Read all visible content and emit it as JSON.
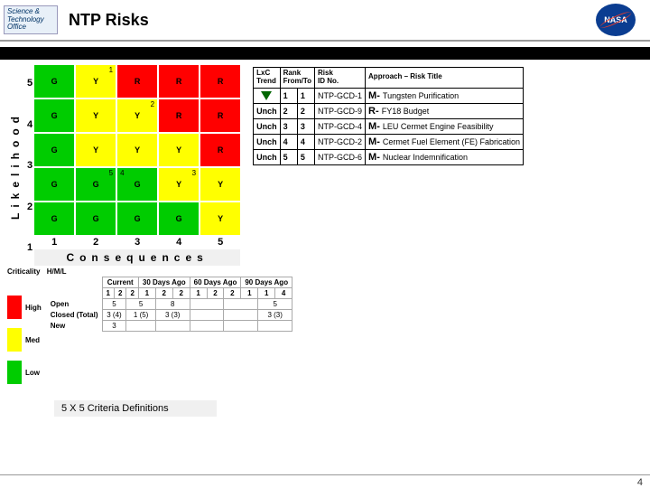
{
  "header": {
    "sci_line1": "Science &",
    "sci_line2": "Technology",
    "sci_line3": "Office",
    "title": "NTP Risks",
    "nasa": "NASA"
  },
  "matrix": {
    "ylabel": "Likelihood",
    "xlabel": "Consequences",
    "yticks": [
      "5",
      "4",
      "3",
      "2",
      "1"
    ],
    "xticks": [
      "1",
      "2",
      "3",
      "4",
      "5"
    ],
    "colors": {
      "g": "#00cc00",
      "y": "#ffff00",
      "r": "#ff0000"
    },
    "cells": [
      [
        {
          "c": "g",
          "t": "G"
        },
        {
          "c": "y",
          "t": "Y",
          "n": "1"
        },
        {
          "c": "r",
          "t": "R"
        },
        {
          "c": "r",
          "t": "R"
        },
        {
          "c": "r",
          "t": "R"
        }
      ],
      [
        {
          "c": "g",
          "t": "G"
        },
        {
          "c": "y",
          "t": "Y"
        },
        {
          "c": "y",
          "t": "Y",
          "n": "2"
        },
        {
          "c": "r",
          "t": "R"
        },
        {
          "c": "r",
          "t": "R"
        }
      ],
      [
        {
          "c": "g",
          "t": "G"
        },
        {
          "c": "y",
          "t": "Y"
        },
        {
          "c": "y",
          "t": "Y"
        },
        {
          "c": "y",
          "t": "Y"
        },
        {
          "c": "r",
          "t": "R"
        }
      ],
      [
        {
          "c": "g",
          "t": "G"
        },
        {
          "c": "g",
          "t": "G",
          "n": "5"
        },
        {
          "c": "g",
          "t": "G",
          "l": "4"
        },
        {
          "c": "y",
          "t": "Y",
          "n": "3"
        },
        {
          "c": "y",
          "t": "Y"
        }
      ],
      [
        {
          "c": "g",
          "t": "G"
        },
        {
          "c": "g",
          "t": "G"
        },
        {
          "c": "g",
          "t": "G"
        },
        {
          "c": "g",
          "t": "G"
        },
        {
          "c": "y",
          "t": "Y"
        }
      ]
    ]
  },
  "risk_table": {
    "headers": [
      "LxC\nTrend",
      "Rank\nFrom/To",
      "Risk\nID No.",
      "Approach – Risk Title"
    ],
    "rows": [
      {
        "trend": "down",
        "from": "1",
        "to": "1",
        "id": "NTP-GCD-1",
        "appr": "M-",
        "title": "Tungsten Purification"
      },
      {
        "trend": "Unch",
        "from": "2",
        "to": "2",
        "id": "NTP-GCD-9",
        "appr": "R-",
        "title": "FY18 Budget"
      },
      {
        "trend": "Unch",
        "from": "3",
        "to": "3",
        "id": "NTP-GCD-4",
        "appr": "M-",
        "title": "LEU Cermet Engine Feasibility"
      },
      {
        "trend": "Unch",
        "from": "4",
        "to": "4",
        "id": "NTP-GCD-2",
        "appr": "M-",
        "title": "Cermet Fuel Element (FE) Fabrication"
      },
      {
        "trend": "Unch",
        "from": "5",
        "to": "5",
        "id": "NTP-GCD-6",
        "appr": "M-",
        "title": "Nuclear Indemnification"
      }
    ]
  },
  "summary": {
    "crit_header": "Criticality",
    "hml": "H/M/L",
    "crit_rows": [
      {
        "color": "#ff0000",
        "label": "High"
      },
      {
        "color": "#ffff00",
        "label": "Med"
      },
      {
        "color": "#00cc00",
        "label": "Low"
      }
    ],
    "periods": [
      "Current",
      "30 Days Ago",
      "60 Days Ago",
      "90 Days Ago"
    ],
    "subhead": [
      "1",
      "2",
      "2",
      "1",
      "2",
      "2",
      "1",
      "2",
      "2",
      "1",
      "1",
      "4"
    ],
    "rows": [
      {
        "label": "Open",
        "vals": [
          "5",
          "5",
          "8",
          "",
          "",
          "5"
        ]
      },
      {
        "label": "Closed (Total)",
        "vals": [
          "3 (4)",
          "1 (5)",
          "3 (3)",
          "",
          "",
          "3 (3)"
        ]
      },
      {
        "label": "New",
        "vals": [
          "3",
          "",
          "",
          "",
          "",
          ""
        ]
      }
    ]
  },
  "criteria_link": "5 X 5 Criteria Definitions",
  "page_num": "4"
}
